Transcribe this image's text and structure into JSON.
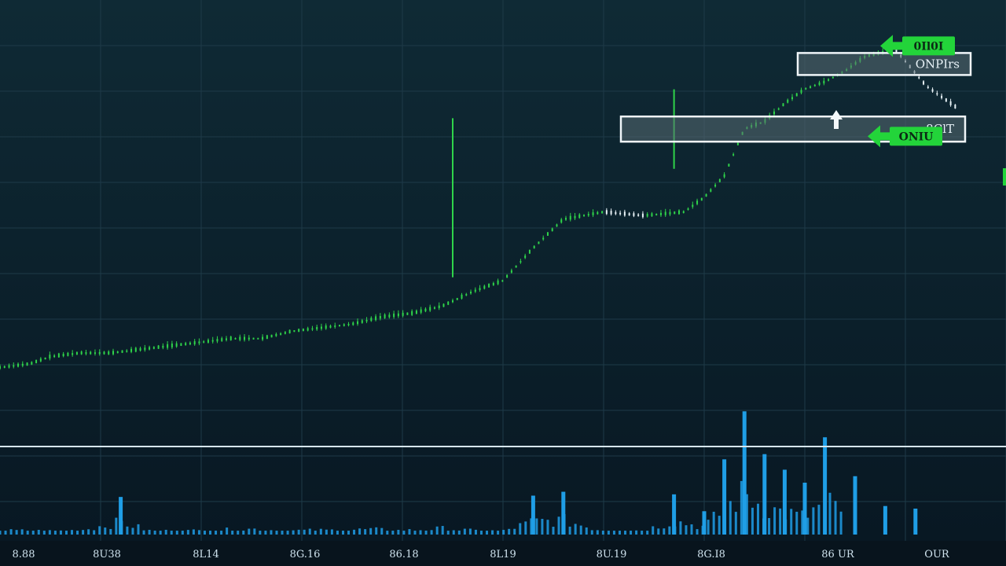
{
  "colors": {
    "background_top": "#0f2a35",
    "background_bottom": "#081722",
    "grid": "#1e3a48",
    "candle_up": "#2fd44a",
    "candle_down": "#e8f2f7",
    "volume": "#1f9ee6",
    "separator": "#d7e6ee",
    "badge_fill": "#23d43a",
    "box_fill": "#5a6b73"
  },
  "chart_data": {
    "type": "line",
    "title": "",
    "xlabel": "",
    "ylabel": "",
    "grid": true,
    "legend": "none",
    "x_ticks": [
      "8.88",
      "8U38",
      "8L14",
      "8G.16",
      "86.18",
      "8L19",
      "8U.19",
      "8G.I8",
      "86 UR",
      "OUR"
    ],
    "xlim": [
      0,
      100
    ],
    "ylim": [
      0,
      100
    ],
    "volume_ylim": [
      0,
      100
    ],
    "price": {
      "x": [
        0,
        3,
        5,
        8,
        11,
        14,
        17,
        20,
        23,
        26,
        29,
        32,
        35,
        38,
        41,
        44,
        47,
        50,
        53,
        56,
        60,
        64,
        68,
        70,
        72,
        74,
        76,
        78,
        80,
        82,
        84,
        86,
        89,
        92,
        95
      ],
      "y": [
        7,
        8,
        10,
        11,
        11,
        12,
        13,
        14,
        15,
        15,
        17,
        18,
        19,
        21,
        22,
        24,
        28,
        31,
        40,
        48,
        50,
        49,
        50,
        54,
        60,
        73,
        75,
        80,
        84,
        86,
        89,
        93,
        95,
        85,
        79
      ]
    },
    "volume": {
      "x": [
        3,
        5,
        8,
        12,
        15,
        20,
        25,
        28,
        33,
        37,
        40,
        44,
        47,
        50,
        53,
        56,
        60,
        64,
        67,
        70,
        72,
        74,
        76,
        78,
        80,
        82,
        85,
        88,
        91
      ],
      "y": [
        9,
        8,
        10,
        29,
        8,
        9,
        13,
        9,
        10,
        12,
        9,
        14,
        9,
        8,
        30,
        33,
        8,
        10,
        31,
        18,
        58,
        95,
        62,
        50,
        40,
        75,
        45,
        22,
        20
      ]
    },
    "annotations": [
      {
        "text": "8ClT",
        "y": 73
      },
      {
        "text": "ONPIrs",
        "y": 91
      }
    ],
    "badges": [
      {
        "text": "0Il0I",
        "y": 96
      },
      {
        "text": "ONIU",
        "y": 71
      }
    ]
  }
}
